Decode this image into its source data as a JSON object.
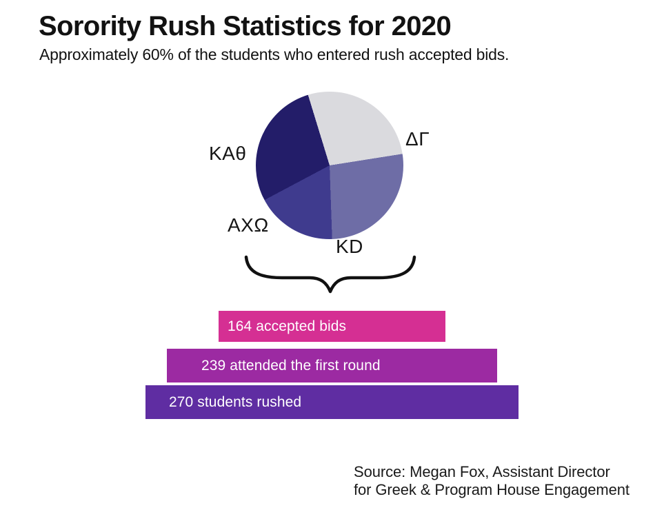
{
  "header": {
    "title": "Sorority Rush Statistics for 2020",
    "subtitle": "Approximately 60% of the students who entered rush accepted bids."
  },
  "chart_data": [
    {
      "type": "pie",
      "start_angle_deg": -17,
      "legend_position": "around-pie",
      "slices": [
        {
          "label": "ΔΓ",
          "angle_deg": 98,
          "percent_est": 27.2,
          "color": "#dadade"
        },
        {
          "label": "KD",
          "angle_deg": 97,
          "percent_est": 26.9,
          "color": "#6e6da6"
        },
        {
          "label": "AXΩ",
          "angle_deg": 64,
          "percent_est": 17.8,
          "color": "#3f3b8e"
        },
        {
          "label": "KAθ",
          "angle_deg": 101,
          "percent_est": 28.1,
          "color": "#231d69"
        }
      ]
    },
    {
      "type": "bar",
      "subtype": "centered-funnel",
      "max_value": 270,
      "bars": [
        {
          "label": "164 accepted bids",
          "value": 164,
          "color": "#d52f93"
        },
        {
          "label": "239 attended the first round",
          "value": 239,
          "color": "#9c2aa2"
        },
        {
          "label": "270 students rushed",
          "value": 270,
          "color": "#5f2da2"
        }
      ]
    }
  ],
  "source": {
    "line1": "Source: Megan Fox, Assistant Director",
    "line2": "for Greek & Program House Engagement"
  }
}
